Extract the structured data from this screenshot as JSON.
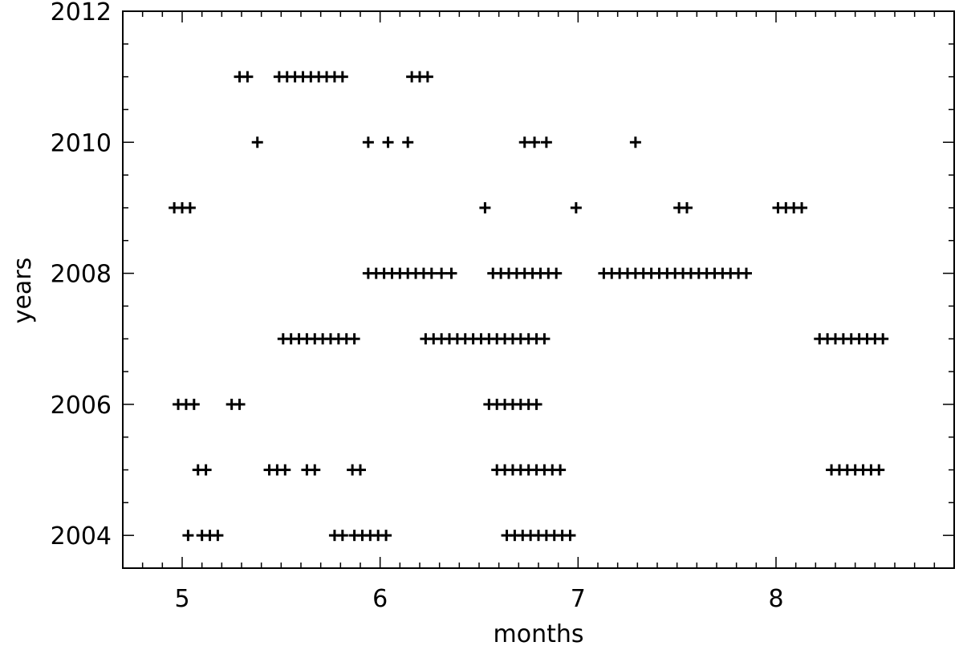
{
  "chart_data": {
    "type": "scatter",
    "title": "",
    "xlabel": "months",
    "ylabel": "years",
    "xlim": [
      4.7,
      8.9
    ],
    "ylim": [
      2003.5,
      2012.0
    ],
    "x_ticks": [
      5,
      6,
      7,
      8
    ],
    "y_ticks": [
      2004,
      2006,
      2008,
      2010,
      2012
    ],
    "x_minor_step": 0.1,
    "y_minor_step": 0.5,
    "marker": "plus",
    "grid": false,
    "points": [
      {
        "y": 2011,
        "x": [
          5.29,
          5.33,
          5.49,
          5.53,
          5.57,
          5.61,
          5.65,
          5.69,
          5.73,
          5.77,
          5.81,
          6.16,
          6.2,
          6.24
        ]
      },
      {
        "y": 2010,
        "x": [
          5.38,
          5.94,
          6.04,
          6.14,
          6.73,
          6.78,
          6.84,
          7.29
        ]
      },
      {
        "y": 2009,
        "x": [
          4.96,
          5.0,
          5.04,
          6.53,
          6.99,
          7.51,
          7.55,
          8.01,
          8.05,
          8.09,
          8.13
        ]
      },
      {
        "y": 2008,
        "x": [
          5.94,
          5.98,
          6.02,
          6.06,
          6.1,
          6.14,
          6.18,
          6.22,
          6.26,
          6.31,
          6.36,
          6.57,
          6.61,
          6.65,
          6.69,
          6.73,
          6.77,
          6.81,
          6.85,
          6.89,
          7.13,
          7.17,
          7.21,
          7.25,
          7.29,
          7.33,
          7.37,
          7.41,
          7.45,
          7.49,
          7.53,
          7.57,
          7.61,
          7.65,
          7.69,
          7.73,
          7.77,
          7.81,
          7.85
        ]
      },
      {
        "y": 2007,
        "x": [
          5.51,
          5.55,
          5.59,
          5.63,
          5.67,
          5.71,
          5.75,
          5.79,
          5.83,
          5.87,
          6.23,
          6.27,
          6.31,
          6.35,
          6.39,
          6.43,
          6.47,
          6.51,
          6.55,
          6.59,
          6.63,
          6.67,
          6.71,
          6.75,
          6.79,
          6.83,
          8.22,
          8.26,
          8.3,
          8.34,
          8.38,
          8.42,
          8.46,
          8.5,
          8.54
        ]
      },
      {
        "y": 2006,
        "x": [
          4.98,
          5.02,
          5.06,
          5.25,
          5.29,
          6.55,
          6.59,
          6.63,
          6.67,
          6.71,
          6.75,
          6.79
        ]
      },
      {
        "y": 2005,
        "x": [
          5.08,
          5.12,
          5.44,
          5.48,
          5.52,
          5.63,
          5.67,
          5.86,
          5.9,
          6.59,
          6.63,
          6.67,
          6.71,
          6.75,
          6.79,
          6.83,
          6.87,
          6.91,
          8.28,
          8.32,
          8.36,
          8.4,
          8.44,
          8.48,
          8.52
        ]
      },
      {
        "y": 2004,
        "x": [
          5.03,
          5.1,
          5.14,
          5.18,
          5.77,
          5.81,
          5.87,
          5.91,
          5.95,
          5.99,
          6.03,
          6.64,
          6.68,
          6.72,
          6.76,
          6.8,
          6.84,
          6.88,
          6.92,
          6.96
        ]
      }
    ]
  }
}
